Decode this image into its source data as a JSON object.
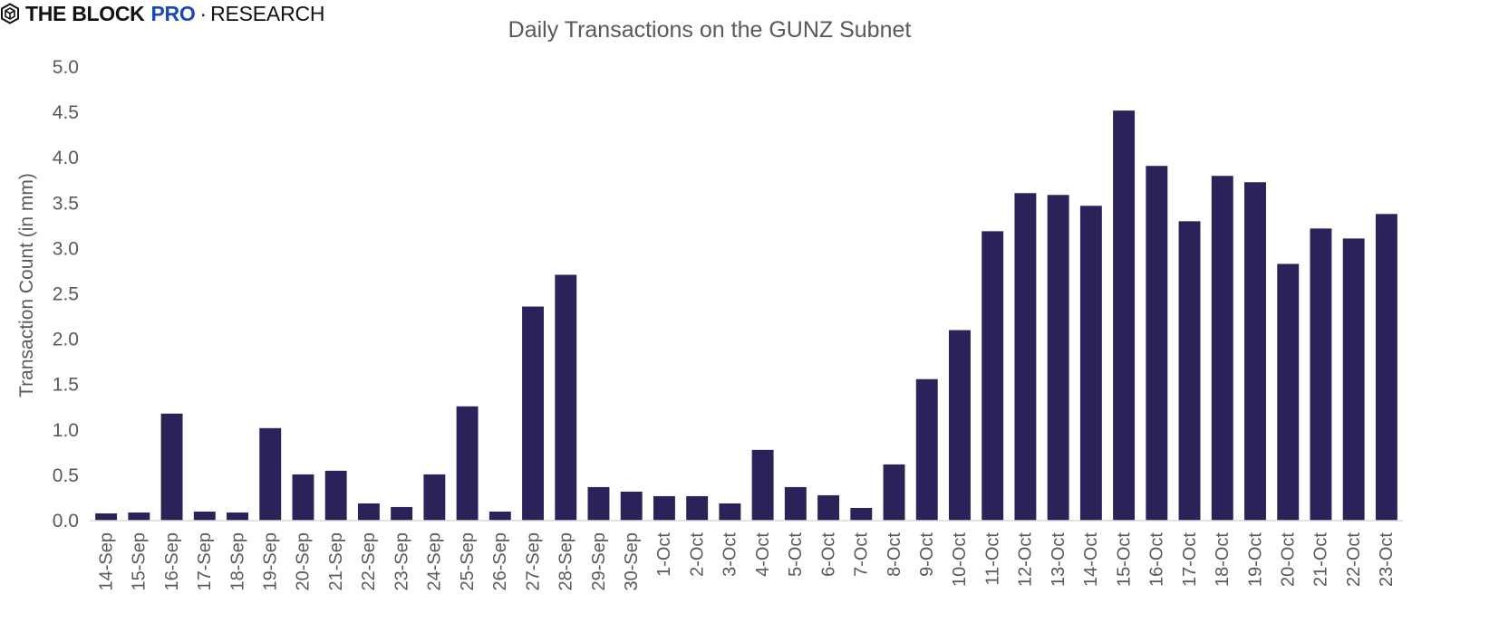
{
  "brand": {
    "icon": "cube-logo-icon",
    "name": "THE BLOCK",
    "pro": "PRO",
    "separator": "·",
    "section": "RESEARCH",
    "pro_color": "#1a46c4"
  },
  "chart_data": {
    "type": "bar",
    "title": "Daily Transactions on the GUNZ Subnet",
    "xlabel": "",
    "ylabel": "Transaction Count (in mm)",
    "ylim": [
      0,
      5
    ],
    "yticks": [
      "0.0",
      "0.5",
      "1.0",
      "1.5",
      "2.0",
      "2.5",
      "3.0",
      "3.5",
      "4.0",
      "4.5",
      "5.0"
    ],
    "grid": false,
    "bar_color": "#2b2259",
    "categories": [
      "14-Sep",
      "15-Sep",
      "16-Sep",
      "17-Sep",
      "18-Sep",
      "19-Sep",
      "20-Sep",
      "21-Sep",
      "22-Sep",
      "23-Sep",
      "24-Sep",
      "25-Sep",
      "26-Sep",
      "27-Sep",
      "28-Sep",
      "29-Sep",
      "30-Sep",
      "1-Oct",
      "2-Oct",
      "3-Oct",
      "4-Oct",
      "5-Oct",
      "6-Oct",
      "7-Oct",
      "8-Oct",
      "9-Oct",
      "10-Oct",
      "11-Oct",
      "12-Oct",
      "13-Oct",
      "14-Oct",
      "15-Oct",
      "16-Oct",
      "17-Oct",
      "18-Oct",
      "19-Oct",
      "20-Oct",
      "21-Oct",
      "22-Oct",
      "23-Oct"
    ],
    "values": [
      0.08,
      0.09,
      1.18,
      0.1,
      0.09,
      1.02,
      0.51,
      0.55,
      0.19,
      0.15,
      0.51,
      1.26,
      0.1,
      2.36,
      2.71,
      0.37,
      0.32,
      0.27,
      0.27,
      0.19,
      0.78,
      0.37,
      0.28,
      0.14,
      0.62,
      1.56,
      2.1,
      3.19,
      3.61,
      3.59,
      3.47,
      4.52,
      3.91,
      3.3,
      3.8,
      3.73,
      2.83,
      3.22,
      3.11,
      3.38
    ]
  }
}
